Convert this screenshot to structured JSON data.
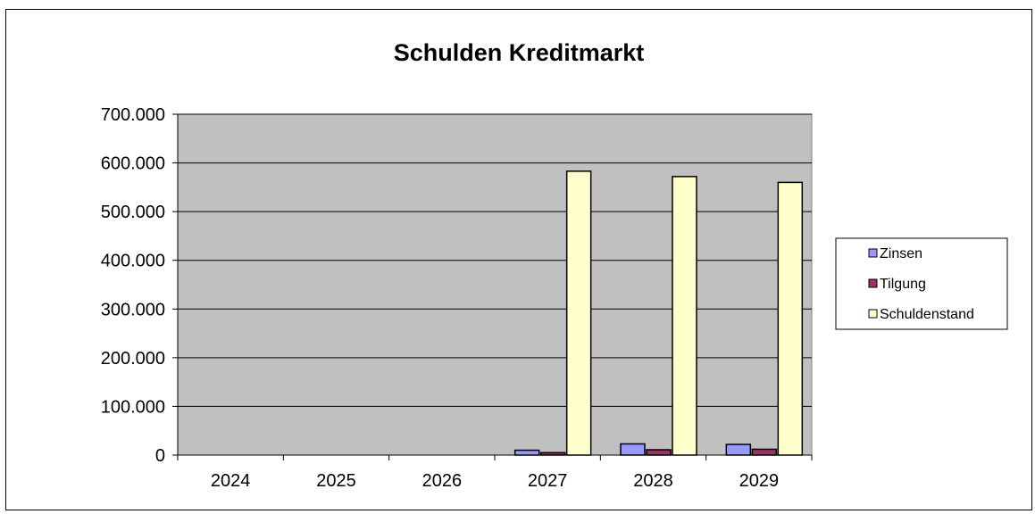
{
  "chart_data": {
    "type": "bar",
    "title": "Schulden Kreditmarkt",
    "xlabel": "",
    "ylabel": "",
    "categories": [
      "2024",
      "2025",
      "2026",
      "2027",
      "2028",
      "2029"
    ],
    "series": [
      {
        "name": "Zinsen",
        "color": "#9999ff",
        "values": [
          0,
          0,
          0,
          10000,
          23000,
          22000
        ]
      },
      {
        "name": "Tilgung",
        "color": "#993366",
        "values": [
          0,
          0,
          0,
          5000,
          11000,
          12000
        ]
      },
      {
        "name": "Schuldenstand",
        "color": "#ffffcc",
        "values": [
          0,
          0,
          0,
          583000,
          572000,
          560000
        ]
      }
    ],
    "ylim": [
      0,
      700000
    ],
    "yticks": [
      0,
      100000,
      200000,
      300000,
      400000,
      500000,
      600000,
      700000
    ],
    "ytick_labels": [
      "0",
      "100.000",
      "200.000",
      "300.000",
      "400.000",
      "500.000",
      "600.000",
      "700.000"
    ],
    "plot_background": "#c0c0c0",
    "grid": true,
    "legend_position": "right"
  }
}
